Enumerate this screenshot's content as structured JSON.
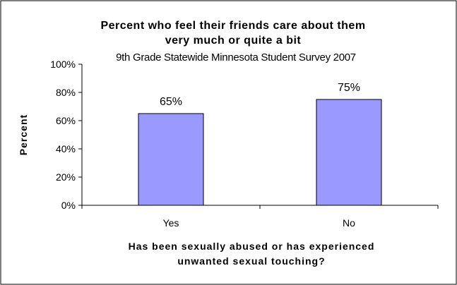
{
  "chart_data": {
    "type": "bar",
    "title_lines": [
      "Percent who feel their friends care about them",
      "very much or quite a bit"
    ],
    "subtitle": "9th Grade Statewide Minnesota Student Survey 2007",
    "categories": [
      "Yes",
      "No"
    ],
    "values": [
      65,
      75
    ],
    "data_labels": [
      "65%",
      "75%"
    ],
    "ylabel": "Percent",
    "xlabel_lines": [
      "Has been sexually abused or has experienced",
      "unwanted sexual touching?"
    ],
    "ylim": [
      0,
      100
    ],
    "yticks": [
      0,
      20,
      40,
      60,
      80,
      100
    ],
    "ytick_labels": [
      "0%",
      "20%",
      "40%",
      "60%",
      "80%",
      "100%"
    ],
    "grid": false,
    "legend": "none",
    "bar_color": "#9999ff"
  }
}
